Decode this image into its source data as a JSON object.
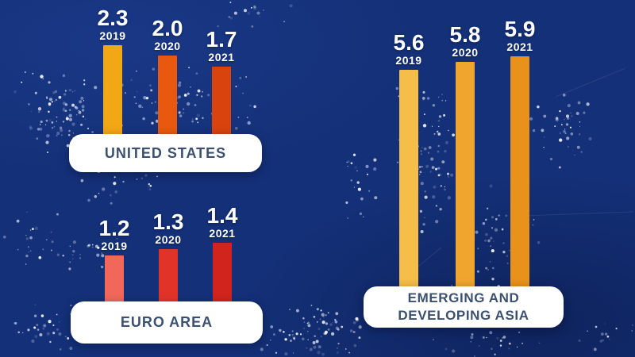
{
  "chart_data": {
    "type": "bar",
    "categories": [
      "2019",
      "2020",
      "2021"
    ],
    "groups": [
      {
        "label": "UNITED STATES",
        "values": [
          2.3,
          2.0,
          1.7
        ],
        "value_labels": [
          "2.3",
          "2.0",
          "1.7"
        ],
        "bar_colors": [
          "#F2A714",
          "#E8590F",
          "#D8430E"
        ]
      },
      {
        "label": "EURO AREA",
        "values": [
          1.2,
          1.3,
          1.4
        ],
        "value_labels": [
          "1.2",
          "1.3",
          "1.4"
        ],
        "bar_colors": [
          "#F1685A",
          "#E23329",
          "#D0241D"
        ]
      },
      {
        "label": "EMERGING AND DEVELOPING ASIA",
        "values": [
          5.6,
          5.8,
          5.9
        ],
        "value_labels": [
          "5.6",
          "5.8",
          "5.9"
        ],
        "bar_colors": [
          "#F5BE48",
          "#F0A52E",
          "#E8921C"
        ]
      }
    ],
    "title": "",
    "xlabel": "",
    "ylabel": "",
    "legend_position": "none",
    "grid": false,
    "value_labels_shown": true
  },
  "style": {
    "background_color": "#143078",
    "label_box_background": "#FFFFFF",
    "label_text_color": "#3C5170",
    "value_text_color": "#FFFFFF"
  }
}
